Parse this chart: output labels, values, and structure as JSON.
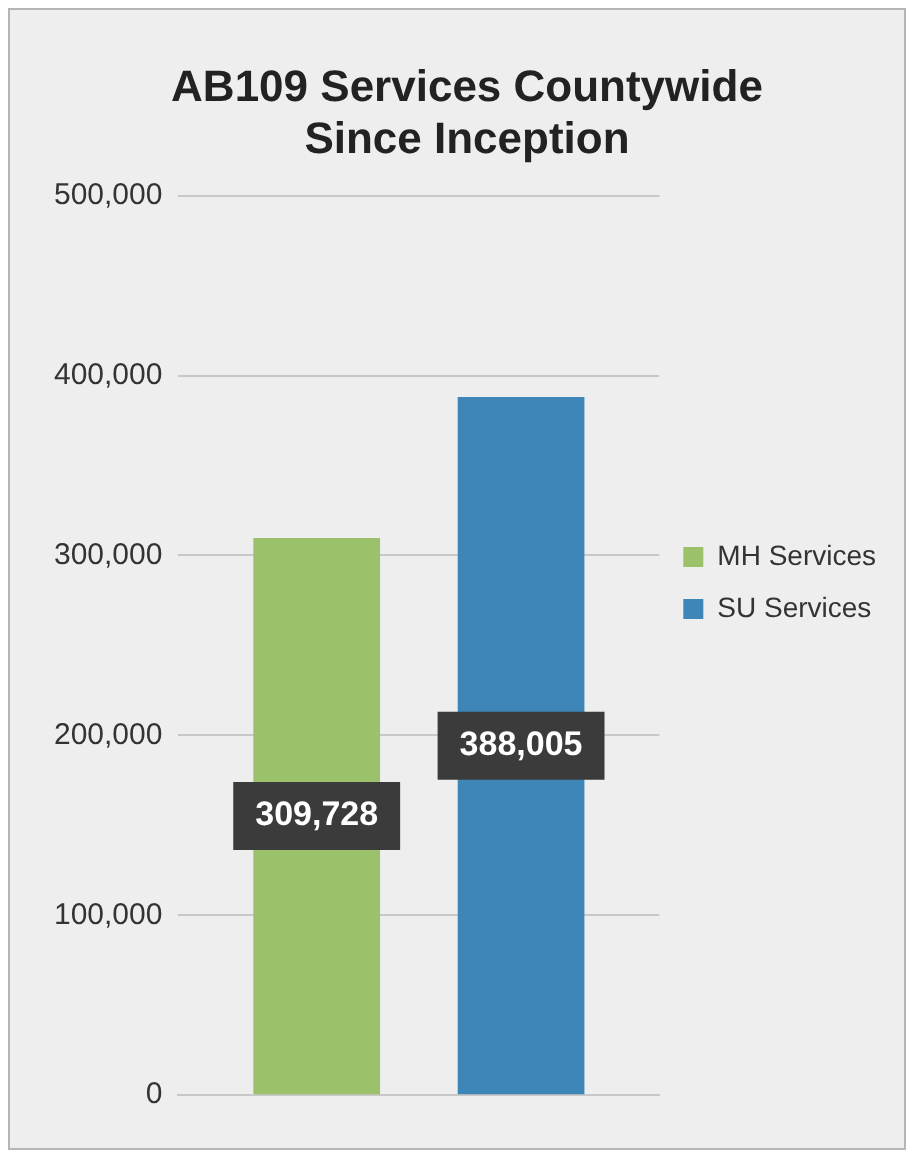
{
  "chart_data": {
    "type": "bar",
    "title": "AB109 Services Countywide Since Inception",
    "categories": [
      null
    ],
    "series": [
      {
        "name": "MH Services",
        "color": "#9bc26a",
        "values": [
          309728
        ],
        "value_labels": [
          "309,728"
        ]
      },
      {
        "name": "SU Services",
        "color": "#3f86b8",
        "values": [
          388005
        ],
        "value_labels": [
          "388,005"
        ]
      }
    ],
    "ylim": [
      0,
      500000
    ],
    "yticks": [
      {
        "value": 0,
        "label": "0"
      },
      {
        "value": 100000,
        "label": "100,000"
      },
      {
        "value": 200000,
        "label": "200,000"
      },
      {
        "value": 300000,
        "label": "300,000"
      },
      {
        "value": 400000,
        "label": "400,000"
      },
      {
        "value": 500000,
        "label": "500,000"
      }
    ],
    "grid": "y",
    "legend": "right"
  }
}
